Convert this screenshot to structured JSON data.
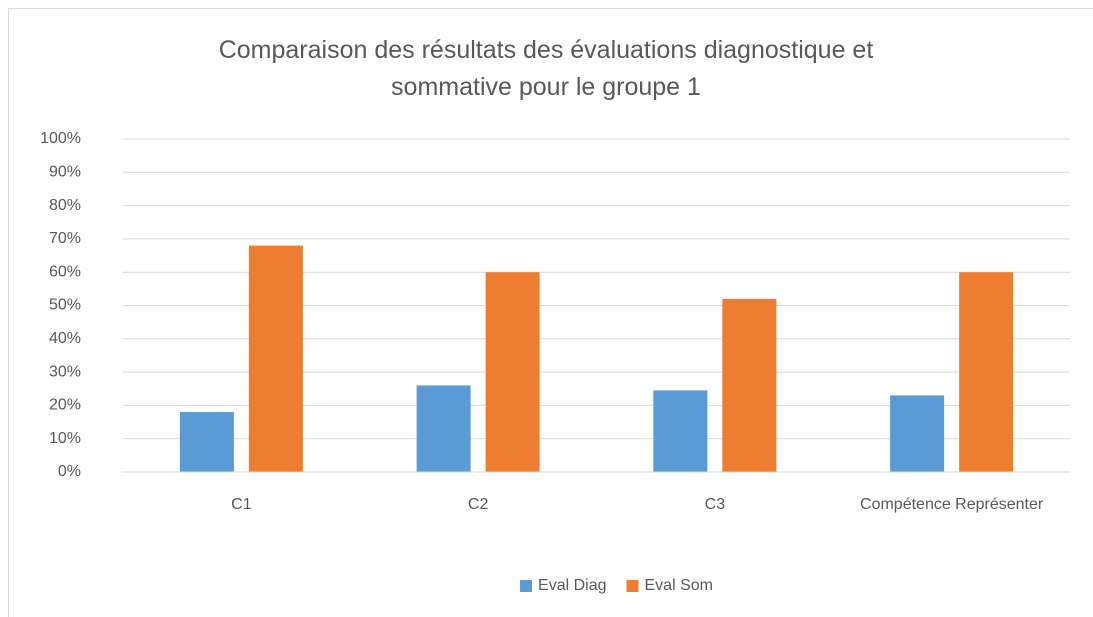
{
  "chart_data": {
    "type": "bar",
    "title": "Comparaison des résultats des évaluations diagnostique et sommative pour le groupe 1",
    "categories": [
      "C1",
      "C2",
      "C3",
      "Compétence Représenter"
    ],
    "series": [
      {
        "name": "Eval Diag",
        "color": "#5b9bd5",
        "values": [
          18,
          26,
          24.5,
          23
        ]
      },
      {
        "name": "Eval Som",
        "color": "#ed7d31",
        "values": [
          68,
          60,
          52,
          60
        ]
      }
    ],
    "ylim": [
      0,
      100
    ],
    "yticks": [
      {
        "value": 0,
        "label": "0%"
      },
      {
        "value": 10,
        "label": "10%"
      },
      {
        "value": 20,
        "label": "20%"
      },
      {
        "value": 30,
        "label": "30%"
      },
      {
        "value": 40,
        "label": "40%"
      },
      {
        "value": 50,
        "label": "50%"
      },
      {
        "value": 60,
        "label": "60%"
      },
      {
        "value": 70,
        "label": "70%"
      },
      {
        "value": 80,
        "label": "80%"
      },
      {
        "value": 90,
        "label": "90%"
      },
      {
        "value": 100,
        "label": "100%"
      }
    ],
    "grid": true,
    "legend": "bottom"
  }
}
